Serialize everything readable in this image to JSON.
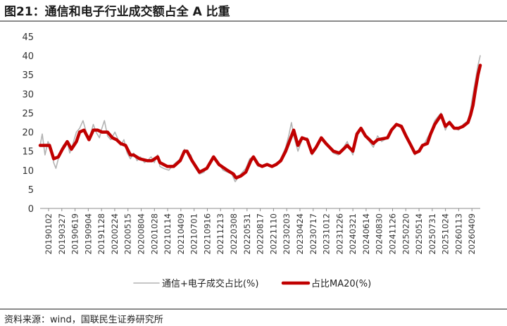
{
  "header": {
    "title": "图21：通信和电子行业成交额占全 A 比重"
  },
  "footer": {
    "source": "资料来源：wind，国联民生证券研究所"
  },
  "chart_data": {
    "type": "line",
    "title": "图21：通信和电子行业成交额占全 A 比重",
    "xlabel": "",
    "ylabel": "",
    "ylim": [
      0,
      45
    ],
    "yticks": [
      0,
      5,
      10,
      15,
      20,
      25,
      30,
      35,
      40,
      45
    ],
    "grid": false,
    "legend_position": "bottom",
    "x_tick_labels": [
      "20190102",
      "20190327",
      "20190619",
      "20190904",
      "20191128",
      "20200224",
      "20200515",
      "20200804",
      "20201028",
      "20210114",
      "20210409",
      "20210701",
      "20210916",
      "20211213",
      "20220308",
      "20220531",
      "20220817",
      "20221110",
      "20230203",
      "20230424",
      "20230717",
      "20231012",
      "20231226",
      "20240321",
      "20240614",
      "20240830",
      "20241126",
      "20250220",
      "20250514",
      "20250731",
      "20251024",
      "20260113",
      "20260409"
    ],
    "x_start": "20190102",
    "x_end": "20260624",
    "series": [
      {
        "name": "通信+电子成交占比(%)",
        "color": "#b3b3b3",
        "style": "thin",
        "points": [
          [
            "20190102",
            16.5
          ],
          [
            "20190115",
            19.5
          ],
          [
            "20190201",
            14.0
          ],
          [
            "20190220",
            17.5
          ],
          [
            "20190310",
            16.0
          ],
          [
            "20190327",
            12.0
          ],
          [
            "20190410",
            10.5
          ],
          [
            "20190501",
            14.0
          ],
          [
            "20190525",
            16.5
          ],
          [
            "20190619",
            17.5
          ],
          [
            "20190705",
            14.5
          ],
          [
            "20190725",
            17.0
          ],
          [
            "20190815",
            20.0
          ],
          [
            "20190904",
            21.0
          ],
          [
            "20190925",
            23.0
          ],
          [
            "20191015",
            20.0
          ],
          [
            "20191101",
            18.0
          ],
          [
            "20191128",
            22.0
          ],
          [
            "20191215",
            20.0
          ],
          [
            "20200105",
            18.5
          ],
          [
            "20200120",
            21.0
          ],
          [
            "20200205",
            23.0
          ],
          [
            "20200224",
            19.0
          ],
          [
            "20200315",
            18.0
          ],
          [
            "20200410",
            20.0
          ],
          [
            "20200515",
            16.5
          ],
          [
            "20200605",
            18.0
          ],
          [
            "20200625",
            14.5
          ],
          [
            "20200715",
            13.0
          ],
          [
            "20200804",
            14.5
          ],
          [
            "20200825",
            12.5
          ],
          [
            "20200915",
            13.5
          ],
          [
            "20201010",
            12.0
          ],
          [
            "20201028",
            12.5
          ],
          [
            "20201120",
            13.5
          ],
          [
            "20201210",
            12.0
          ],
          [
            "20201231",
            14.0
          ],
          [
            "20210114",
            11.0
          ],
          [
            "20210205",
            10.5
          ],
          [
            "20210310",
            10.0
          ],
          [
            "20210409",
            11.5
          ],
          [
            "20210520",
            13.0
          ],
          [
            "20210615",
            15.5
          ],
          [
            "20210701",
            14.5
          ],
          [
            "20210725",
            14.0
          ],
          [
            "20210816",
            11.0
          ],
          [
            "20210916",
            9.0
          ],
          [
            "20211015",
            9.5
          ],
          [
            "20211115",
            12.0
          ],
          [
            "20211213",
            13.5
          ],
          [
            "20220110",
            12.0
          ],
          [
            "20220210",
            10.0
          ],
          [
            "20220308",
            9.5
          ],
          [
            "20220405",
            9.0
          ],
          [
            "20220426",
            7.0
          ],
          [
            "20220531",
            9.0
          ],
          [
            "20220701",
            10.5
          ],
          [
            "20220725",
            13.0
          ],
          [
            "20220817",
            13.5
          ],
          [
            "20220915",
            11.0
          ],
          [
            "20221010",
            11.0
          ],
          [
            "20221110",
            11.5
          ],
          [
            "20221210",
            11.0
          ],
          [
            "20230105",
            11.5
          ],
          [
            "20230203",
            13.0
          ],
          [
            "20230305",
            16.0
          ],
          [
            "20230324",
            19.0
          ],
          [
            "20230410",
            22.5
          ],
          [
            "20230424",
            19.0
          ],
          [
            "20230520",
            15.0
          ],
          [
            "20230615",
            18.0
          ],
          [
            "20230717",
            18.5
          ],
          [
            "20230815",
            14.0
          ],
          [
            "20230910",
            15.5
          ],
          [
            "20231012",
            18.5
          ],
          [
            "20231110",
            17.0
          ],
          [
            "20231226",
            14.5
          ],
          [
            "20240125",
            14.0
          ],
          [
            "20240220",
            15.5
          ],
          [
            "20240321",
            17.5
          ],
          [
            "20240425",
            14.0
          ],
          [
            "20240520",
            19.0
          ],
          [
            "20240614",
            21.0
          ],
          [
            "20240712",
            19.0
          ],
          [
            "20240830",
            16.0
          ],
          [
            "20240925",
            19.0
          ],
          [
            "20241020",
            17.5
          ],
          [
            "20241126",
            18.5
          ],
          [
            "20241220",
            21.0
          ],
          [
            "20250120",
            22.0
          ],
          [
            "20250220",
            21.0
          ],
          [
            "20250320",
            18.5
          ],
          [
            "20250420",
            17.0
          ],
          [
            "20250514",
            14.0
          ],
          [
            "20250610",
            15.5
          ],
          [
            "20250701",
            16.0
          ],
          [
            "20250731",
            18.5
          ],
          [
            "20250820",
            20.0
          ],
          [
            "20250915",
            23.0
          ],
          [
            "20251024",
            25.0
          ],
          [
            "20251120",
            20.5
          ],
          [
            "20251215",
            23.0
          ],
          [
            "20260113",
            21.0
          ],
          [
            "20260210",
            20.5
          ],
          [
            "20260310",
            22.0
          ],
          [
            "20260409",
            23.0
          ],
          [
            "20260425",
            26.0
          ],
          [
            "20260510",
            30.0
          ],
          [
            "20260525",
            33.5
          ],
          [
            "20260610",
            37.5
          ],
          [
            "20260624",
            40.0
          ]
        ]
      },
      {
        "name": "占比MA20(%)",
        "color": "#c00000",
        "style": "thick",
        "points": [
          [
            "20190102",
            16.5
          ],
          [
            "20190201",
            16.5
          ],
          [
            "20190301",
            16.5
          ],
          [
            "20190327",
            13.0
          ],
          [
            "20190425",
            13.5
          ],
          [
            "20190520",
            15.5
          ],
          [
            "20190619",
            17.5
          ],
          [
            "20190715",
            15.5
          ],
          [
            "20190815",
            17.5
          ],
          [
            "20190904",
            20.0
          ],
          [
            "20191001",
            20.5
          ],
          [
            "20191101",
            18.0
          ],
          [
            "20191128",
            20.5
          ],
          [
            "20191225",
            20.5
          ],
          [
            "20200120",
            20.0
          ],
          [
            "20200224",
            20.0
          ],
          [
            "20200325",
            18.5
          ],
          [
            "20200420",
            18.0
          ],
          [
            "20200515",
            17.0
          ],
          [
            "20200615",
            16.5
          ],
          [
            "20200715",
            14.0
          ],
          [
            "20200804",
            14.0
          ],
          [
            "20200910",
            13.0
          ],
          [
            "20201028",
            12.5
          ],
          [
            "20201125",
            12.5
          ],
          [
            "20201231",
            13.5
          ],
          [
            "20210114",
            12.0
          ],
          [
            "20210301",
            11.0
          ],
          [
            "20210409",
            11.0
          ],
          [
            "20210520",
            12.5
          ],
          [
            "20210615",
            15.0
          ],
          [
            "20210701",
            15.0
          ],
          [
            "20210801",
            12.5
          ],
          [
            "20210916",
            9.5
          ],
          [
            "20211101",
            10.5
          ],
          [
            "20211213",
            13.5
          ],
          [
            "20220115",
            11.5
          ],
          [
            "20220308",
            10.0
          ],
          [
            "20220415",
            9.0
          ],
          [
            "20220501",
            8.0
          ],
          [
            "20220531",
            8.5
          ],
          [
            "20220701",
            9.5
          ],
          [
            "20220801",
            12.5
          ],
          [
            "20220817",
            13.5
          ],
          [
            "20220915",
            11.5
          ],
          [
            "20221010",
            11.0
          ],
          [
            "20221110",
            11.5
          ],
          [
            "20221210",
            11.0
          ],
          [
            "20230105",
            11.5
          ],
          [
            "20230203",
            12.5
          ],
          [
            "20230305",
            15.0
          ],
          [
            "20230424",
            20.5
          ],
          [
            "20230520",
            16.5
          ],
          [
            "20230615",
            18.5
          ],
          [
            "20230717",
            18.0
          ],
          [
            "20230815",
            14.5
          ],
          [
            "20230910",
            16.0
          ],
          [
            "20231012",
            18.5
          ],
          [
            "20231110",
            17.0
          ],
          [
            "20231226",
            15.0
          ],
          [
            "20240201",
            14.5
          ],
          [
            "20240321",
            16.5
          ],
          [
            "20240425",
            15.0
          ],
          [
            "20240520",
            19.5
          ],
          [
            "20240614",
            21.0
          ],
          [
            "20240712",
            19.0
          ],
          [
            "20240830",
            17.0
          ],
          [
            "20240925",
            18.0
          ],
          [
            "20241126",
            18.5
          ],
          [
            "20241220",
            20.5
          ],
          [
            "20250120",
            22.0
          ],
          [
            "20250220",
            21.5
          ],
          [
            "20250320",
            19.0
          ],
          [
            "20250420",
            16.5
          ],
          [
            "20250514",
            14.5
          ],
          [
            "20250610",
            15.0
          ],
          [
            "20250701",
            16.5
          ],
          [
            "20250731",
            17.0
          ],
          [
            "20250820",
            19.5
          ],
          [
            "20250915",
            22.0
          ],
          [
            "20251024",
            24.5
          ],
          [
            "20251120",
            21.5
          ],
          [
            "20251215",
            22.5
          ],
          [
            "20260113",
            21.0
          ],
          [
            "20260210",
            21.0
          ],
          [
            "20260310",
            21.5
          ],
          [
            "20260409",
            22.5
          ],
          [
            "20260425",
            24.5
          ],
          [
            "20260510",
            27.0
          ],
          [
            "20260525",
            31.0
          ],
          [
            "20260610",
            35.0
          ],
          [
            "20260624",
            37.5
          ]
        ]
      }
    ]
  }
}
